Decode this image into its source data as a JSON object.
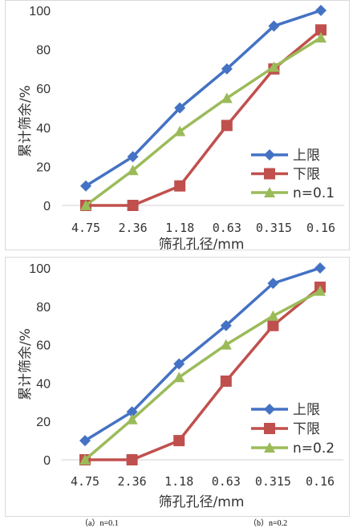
{
  "chart_data": [
    {
      "type": "line",
      "categories": [
        "4.75",
        "2.36",
        "1.18",
        "0.63",
        "0.315",
        "0.16"
      ],
      "xlabel": "筛孔孔径/mm",
      "ylabel": "累计筛余/%",
      "ylim": [
        0,
        100
      ],
      "yticks": [
        "0",
        "20",
        "40",
        "60",
        "80",
        "100"
      ],
      "grid": false,
      "legend": "bottom-right",
      "series": [
        {
          "name": "上限",
          "values": [
            10,
            25,
            50,
            70,
            92,
            100
          ],
          "color": "#4472c4",
          "marker": "diamond"
        },
        {
          "name": "下限",
          "values": [
            0,
            0,
            10,
            41,
            70,
            90
          ],
          "color": "#c0504d",
          "marker": "square"
        },
        {
          "name": "n=0.1",
          "values": [
            0,
            18,
            38,
            55,
            71,
            86
          ],
          "color": "#9bbb59",
          "marker": "triangle"
        }
      ]
    },
    {
      "type": "line",
      "categories": [
        "4.75",
        "2.36",
        "1.18",
        "0.63",
        "0.315",
        "0.16"
      ],
      "xlabel": "筛孔孔径/mm",
      "ylabel": "累计筛余/%",
      "ylim": [
        0,
        100
      ],
      "yticks": [
        "0",
        "20",
        "40",
        "60",
        "80",
        "100"
      ],
      "grid": false,
      "legend": "bottom-right",
      "series": [
        {
          "name": "上限",
          "values": [
            10,
            25,
            50,
            70,
            92,
            100
          ],
          "color": "#4472c4",
          "marker": "diamond"
        },
        {
          "name": "下限",
          "values": [
            0,
            0,
            10,
            41,
            70,
            90
          ],
          "color": "#c0504d",
          "marker": "square"
        },
        {
          "name": "n=0.2",
          "values": [
            0,
            21,
            43,
            60,
            75,
            88
          ],
          "color": "#9bbb59",
          "marker": "triangle"
        }
      ]
    }
  ],
  "captions": [
    "（a）n=0.1",
    "（b）n=0.2"
  ]
}
